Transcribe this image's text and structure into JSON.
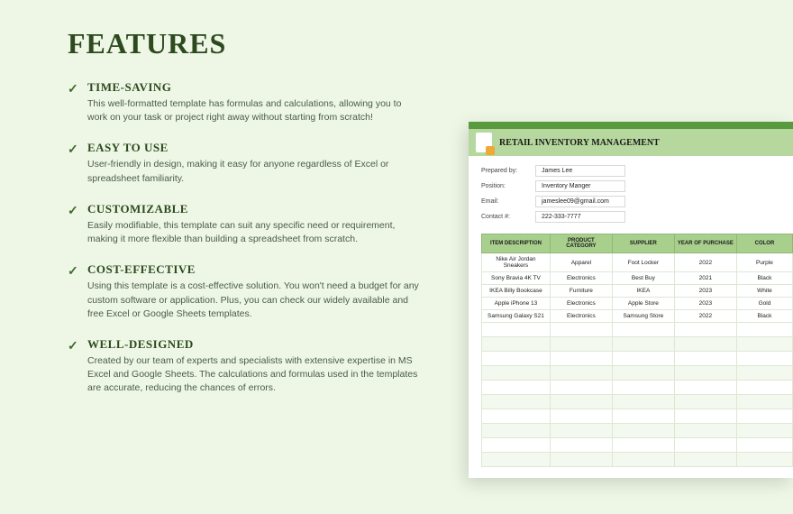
{
  "page_title": "FEATURES",
  "features": [
    {
      "title": "TIME-SAVING",
      "desc": "This well-formatted template has formulas and calculations, allowing you to work on your task or project right away without starting from scratch!"
    },
    {
      "title": "EASY TO USE",
      "desc": "User-friendly in design, making it easy for anyone regardless of Excel or spreadsheet familiarity."
    },
    {
      "title": "CUSTOMIZABLE",
      "desc": "Easily modifiable, this template can suit any specific need or requirement, making it more flexible than building a spreadsheet from scratch."
    },
    {
      "title": "COST-EFFECTIVE",
      "desc": "Using this template is a cost-effective solution. You won't need a budget for any custom software or application. Plus, you can check our widely available and free Excel or Google Sheets templates."
    },
    {
      "title": "WELL-DESIGNED",
      "desc": "Created by our team of experts and specialists with extensive expertise in MS Excel and Google Sheets. The calculations and formulas used in the templates are accurate, reducing the chances of errors."
    }
  ],
  "preview": {
    "title": "RETAIL INVENTORY MANAGEMENT",
    "meta": {
      "prepared_by_label": "Prepared by:",
      "prepared_by": "James Lee",
      "position_label": "Position:",
      "position": "Inventory Manger",
      "email_label": "Email:",
      "email": "jameslee09@gmail.com",
      "contact_label": "Contact #:",
      "contact": "222-333-7777"
    },
    "table": {
      "columns": [
        "ITEM DESCRIPTION",
        "PRODUCT CATEGORY",
        "SUPPLIER",
        "YEAR OF PURCHASE",
        "COLOR"
      ],
      "col_widths": [
        "22%",
        "20%",
        "20%",
        "20%",
        "18%"
      ],
      "rows": [
        [
          "Nike Air Jordan Sneakers",
          "Apparel",
          "Foot Locker",
          "2022",
          "Purple"
        ],
        [
          "Sony Bravia 4K TV",
          "Electronics",
          "Best Buy",
          "2021",
          "Black"
        ],
        [
          "IKEA Billy Bookcase",
          "Furniture",
          "IKEA",
          "2023",
          "White"
        ],
        [
          "Apple iPhone 13",
          "Electronics",
          "Apple Store",
          "2023",
          "Gold"
        ],
        [
          "Samsung Galaxy S21",
          "Electronics",
          "Samsung Store",
          "2022",
          "Black"
        ]
      ],
      "empty_rows": 10,
      "header_bg": "#a9cf8d",
      "header_border": "#8fb876",
      "cell_border": "#dde8d4",
      "alt_row_bg": "#f3f9ee"
    },
    "colors": {
      "topbar": "#5a9a3f",
      "header_bg": "#b6d89e"
    }
  },
  "colors": {
    "background": "#eef7e6",
    "title_color": "#2d4a1e",
    "check_color": "#3b6b28",
    "desc_color": "#4a5c46"
  }
}
